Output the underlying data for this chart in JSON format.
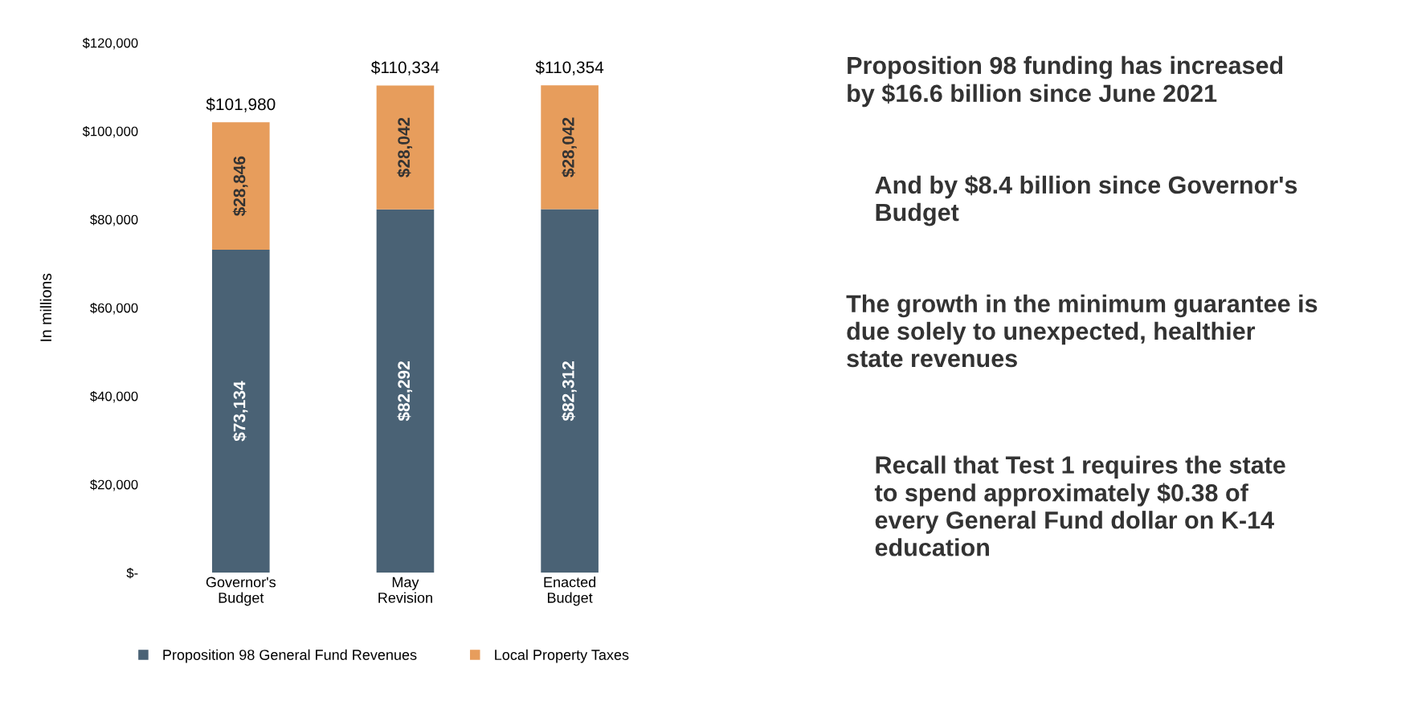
{
  "chart_data": {
    "type": "bar",
    "stacked": true,
    "ylabel": "In millions",
    "categories": [
      "Governor's\nBudget",
      "May\nRevision",
      "Enacted\nBudget"
    ],
    "series": [
      {
        "name": "Proposition 98 General Fund Revenues",
        "color": "#4a6275",
        "values": [
          73134,
          82292,
          82312
        ],
        "value_labels": [
          "$73,134",
          "$82,292",
          "$82,312"
        ]
      },
      {
        "name": "Local Property Taxes",
        "color": "#e79d5c",
        "values": [
          28846,
          28042,
          28042
        ],
        "value_labels": [
          "$28,846",
          "$28,042",
          "$28,042"
        ]
      }
    ],
    "totals": [
      "$101,980",
      "$110,334",
      "$110,354"
    ],
    "ylim": [
      0,
      120000
    ],
    "yticks": [
      {
        "value": 0,
        "label": "$-"
      },
      {
        "value": 20000,
        "label": "$20,000"
      },
      {
        "value": 40000,
        "label": "$40,000"
      },
      {
        "value": 60000,
        "label": "$60,000"
      },
      {
        "value": 80000,
        "label": "$80,000"
      },
      {
        "value": 100000,
        "label": "$100,000"
      },
      {
        "value": 120000,
        "label": "$120,000"
      }
    ],
    "grid": false,
    "legend": "bottom",
    "annotations": [
      "Proposition 98 funding has increased\nby $16.6 billion since June 2021",
      "And by $8.4 billion since Governor's\nBudget",
      "The growth in the minimum guarantee is\ndue solely to unexpected, healthier\nstate revenues",
      "Recall that Test 1 requires the state\nto spend approximately $0.38 of\nevery General Fund dollar on K-14\neducation"
    ]
  }
}
